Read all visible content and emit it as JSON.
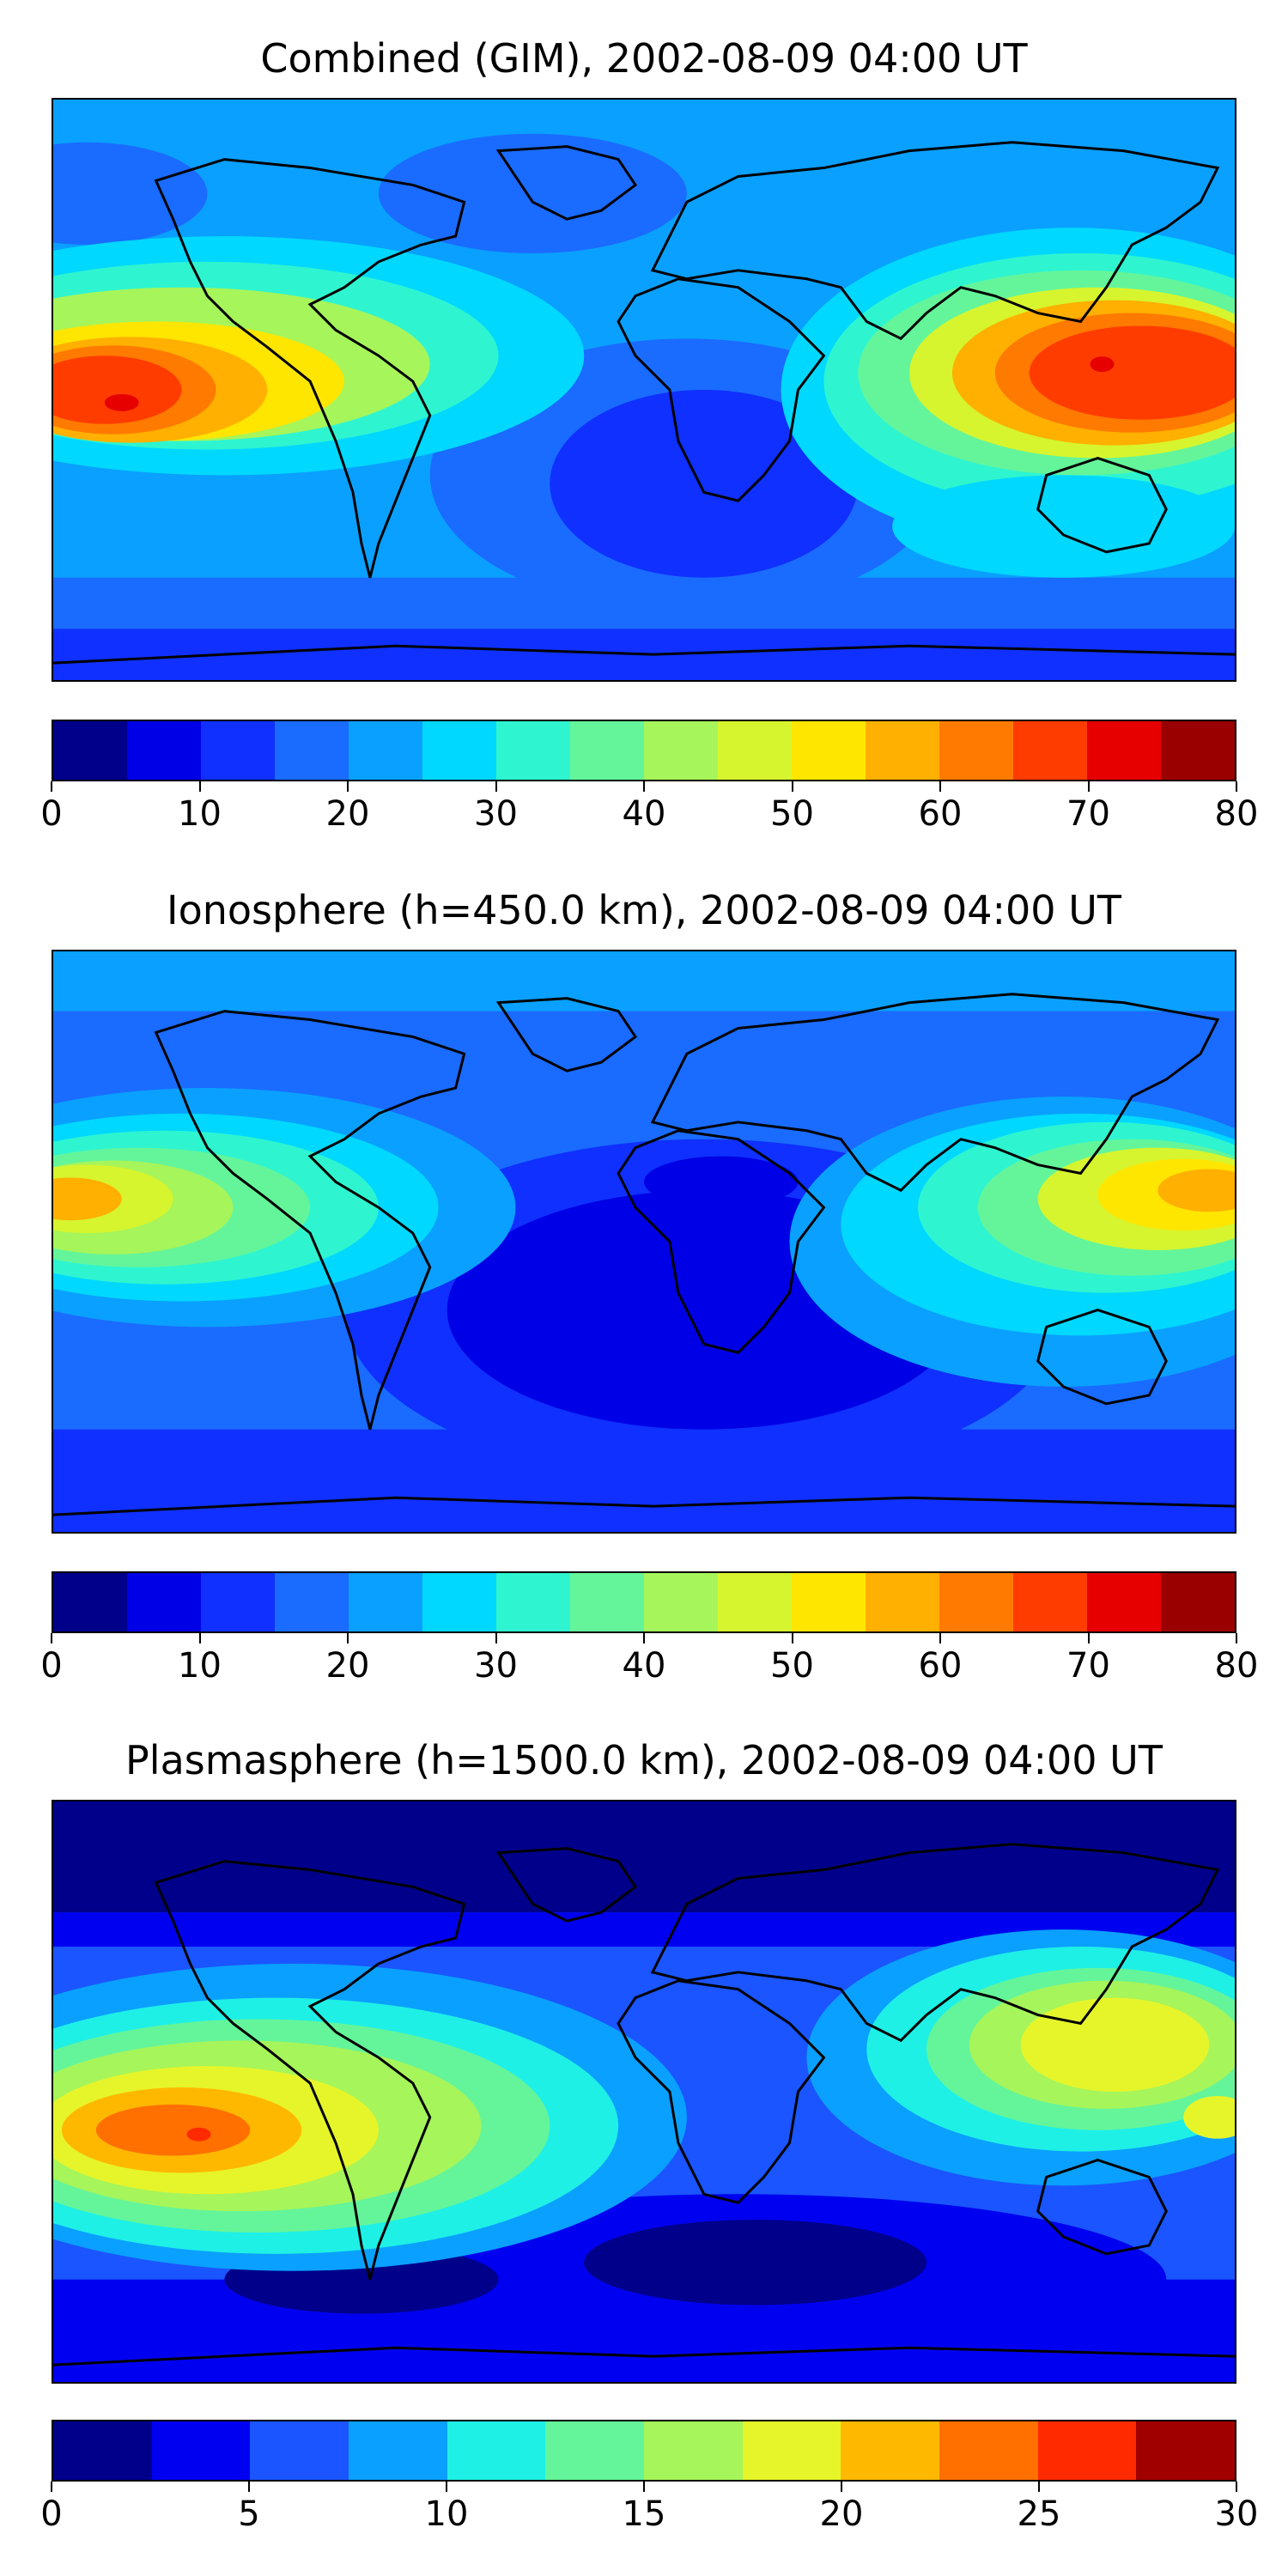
{
  "panels": [
    {
      "title": "Combined (GIM), 2002-08-09 04:00 UT",
      "colorbar": {
        "colors": [
          "#00008b",
          "#0000e6",
          "#0f30ff",
          "#1a6bff",
          "#0aa0ff",
          "#00d8ff",
          "#2ef5d0",
          "#64f59a",
          "#a6f55a",
          "#d6f52e",
          "#ffe600",
          "#ffb000",
          "#ff7a00",
          "#ff3c00",
          "#e60000",
          "#9b0000"
        ],
        "tick_values": [
          0,
          10,
          20,
          30,
          40,
          50,
          60,
          70,
          80
        ],
        "tick_labels": [
          "0",
          "10",
          "20",
          "30",
          "40",
          "50",
          "60",
          "70",
          "80"
        ],
        "range": [
          0,
          80
        ]
      }
    },
    {
      "title": "Ionosphere  (h=450.0 km), 2002-08-09 04:00 UT",
      "colorbar": {
        "colors": [
          "#00008b",
          "#0000e6",
          "#0f30ff",
          "#1a6bff",
          "#0aa0ff",
          "#00d8ff",
          "#2ef5d0",
          "#64f59a",
          "#a6f55a",
          "#d6f52e",
          "#ffe600",
          "#ffb000",
          "#ff7a00",
          "#ff3c00",
          "#e60000",
          "#9b0000"
        ],
        "tick_values": [
          0,
          10,
          20,
          30,
          40,
          50,
          60,
          70,
          80
        ],
        "tick_labels": [
          "0",
          "10",
          "20",
          "30",
          "40",
          "50",
          "60",
          "70",
          "80"
        ],
        "range": [
          0,
          80
        ]
      }
    },
    {
      "title": "Plasmasphere (h=1500.0 km), 2002-08-09 04:00 UT",
      "colorbar": {
        "colors": [
          "#00008b",
          "#0000f0",
          "#1a55ff",
          "#0aa0ff",
          "#1ef0e6",
          "#64f59a",
          "#a6f55a",
          "#e6f52a",
          "#ffb800",
          "#ff7000",
          "#ff2a00",
          "#a00000"
        ],
        "tick_values": [
          0,
          5,
          10,
          15,
          20,
          25,
          30
        ],
        "tick_labels": [
          "0",
          "5",
          "10",
          "15",
          "20",
          "25",
          "30"
        ],
        "range": [
          0,
          30
        ]
      }
    }
  ]
}
